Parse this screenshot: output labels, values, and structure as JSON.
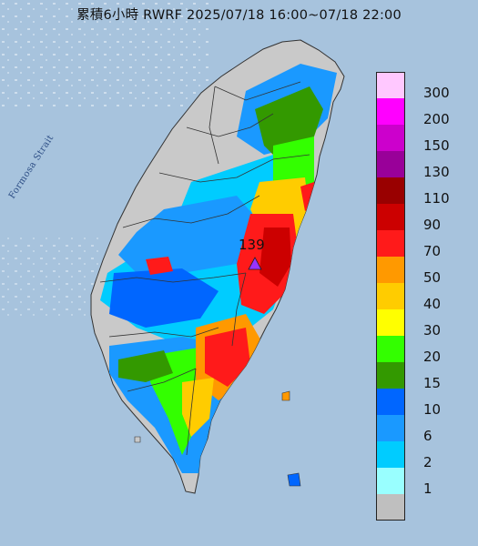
{
  "header": {
    "title": "累積6小時 RWRF 2025/07/18 16:00~07/18 22:00"
  },
  "map": {
    "strait_label": "Formosa Strait",
    "peak_value": "139",
    "peak_marker_color": "#9933ff"
  },
  "legend": {
    "items": [
      {
        "label": "300",
        "color": "#ffc8ff"
      },
      {
        "label": "200",
        "color": "#ff00ff"
      },
      {
        "label": "150",
        "color": "#cc00cc"
      },
      {
        "label": "130",
        "color": "#990099"
      },
      {
        "label": "110",
        "color": "#990000"
      },
      {
        "label": "90",
        "color": "#cc0000"
      },
      {
        "label": "70",
        "color": "#ff1a1a"
      },
      {
        "label": "50",
        "color": "#ff9900"
      },
      {
        "label": "40",
        "color": "#ffcc00"
      },
      {
        "label": "30",
        "color": "#ffff00"
      },
      {
        "label": "20",
        "color": "#33ff00"
      },
      {
        "label": "15",
        "color": "#339900"
      },
      {
        "label": "10",
        "color": "#0066ff"
      },
      {
        "label": "6",
        "color": "#1a99ff"
      },
      {
        "label": "2",
        "color": "#00ccff"
      },
      {
        "label": "1",
        "color": "#99ffff"
      },
      {
        "label": "",
        "color": "#bfbfbf"
      }
    ]
  }
}
